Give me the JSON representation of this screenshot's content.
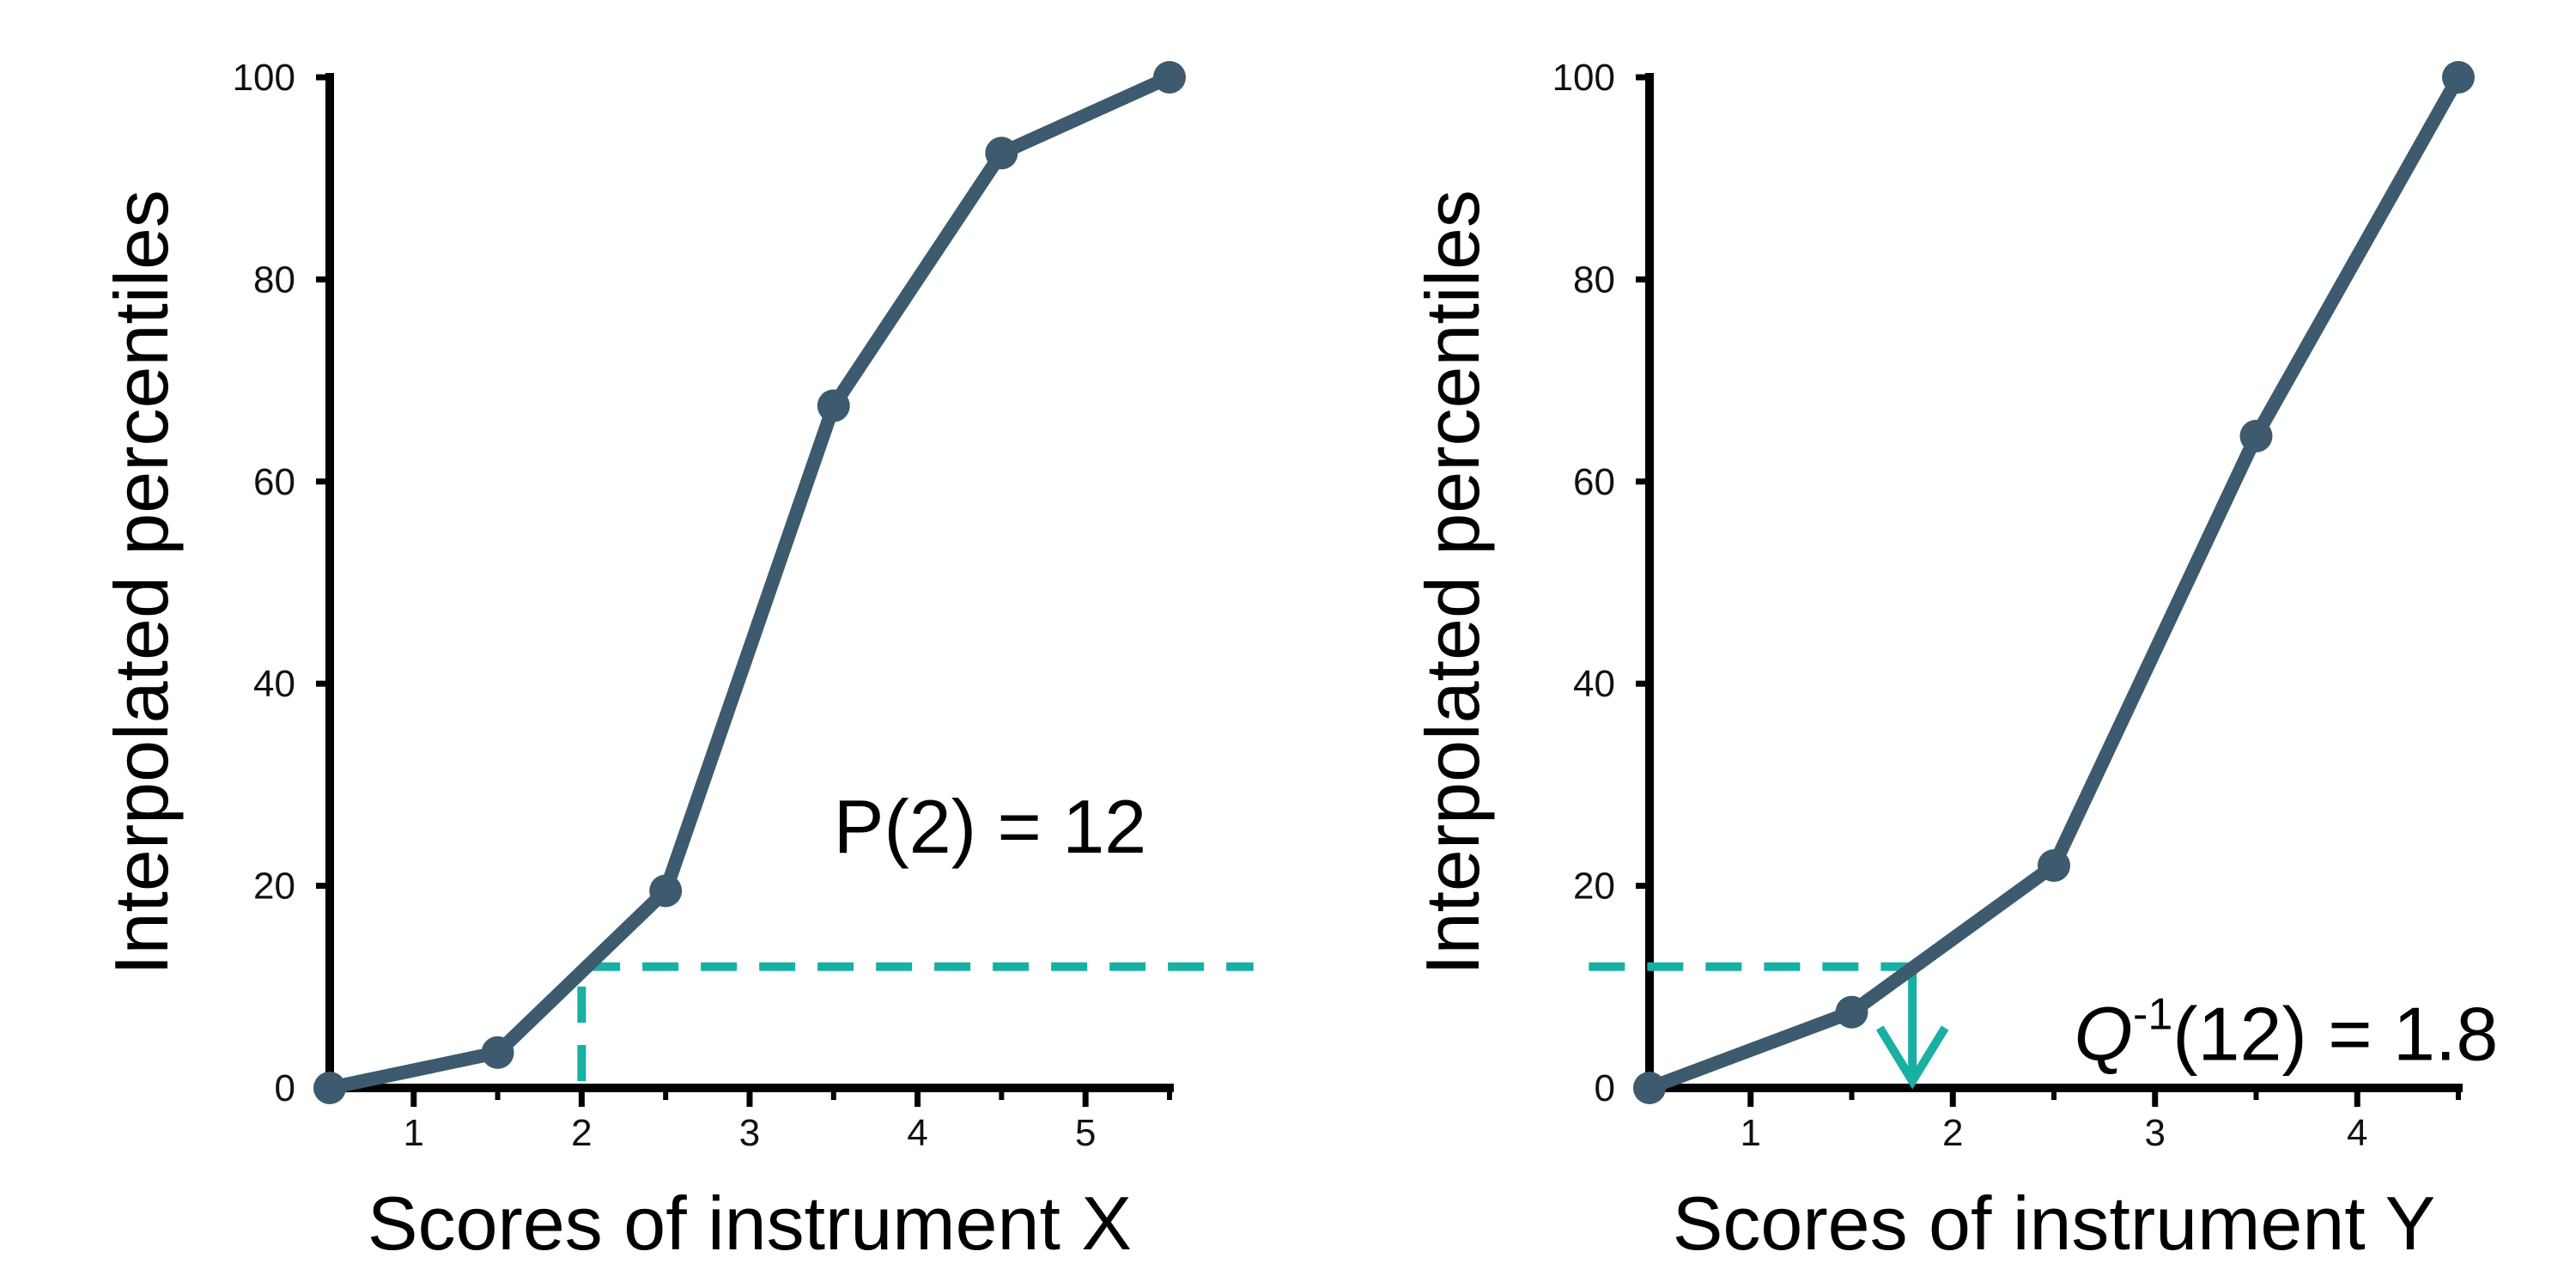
{
  "colors": {
    "series": "#3d5a6e",
    "guide": "#17b0a2",
    "axis": "#000000"
  },
  "chart_data": [
    {
      "type": "line",
      "title": "",
      "xlabel": "Scores of instrument X",
      "ylabel": "Interpolated percentiles",
      "xlim": [
        0.5,
        5.5
      ],
      "ylim": [
        0,
        100
      ],
      "x_ticks": [
        1,
        2,
        3,
        4,
        5
      ],
      "x_minor": [
        1.5,
        2.5,
        3.5,
        4.5,
        5.5
      ],
      "y_ticks": [
        0,
        20,
        40,
        60,
        80,
        100
      ],
      "series": [
        {
          "x": [
            0.5,
            1.5,
            2.5,
            3.5,
            4.5,
            5.5
          ],
          "y": [
            0,
            3.5,
            19.5,
            67.5,
            92.5,
            100
          ]
        }
      ],
      "guide": {
        "x": 2,
        "y": 12,
        "x_end": 6.0
      },
      "annotation": {
        "text": "P(2) = 12",
        "x": 3.5,
        "y": 26
      }
    },
    {
      "type": "line",
      "title": "",
      "xlabel": "Scores of instrument Y",
      "ylabel": "Interpolated percentiles",
      "xlim": [
        0.5,
        4.5
      ],
      "ylim": [
        0,
        100
      ],
      "x_ticks": [
        1,
        2,
        3,
        4
      ],
      "x_minor": [
        1.5,
        2.5,
        3.5,
        4.5
      ],
      "y_ticks": [
        0,
        20,
        40,
        60,
        80,
        100
      ],
      "series": [
        {
          "x": [
            0.5,
            1.5,
            2.5,
            3.5,
            4.5
          ],
          "y": [
            0,
            7.5,
            22,
            64.5,
            100
          ]
        }
      ],
      "guide": {
        "x": 1.8,
        "y": 12,
        "x_start": 0.2
      },
      "annotation": {
        "prefix": "Q",
        "superscript": "-1",
        "suffix": "(12) = 1.8",
        "x": 2.6,
        "y": 5.5
      }
    }
  ]
}
